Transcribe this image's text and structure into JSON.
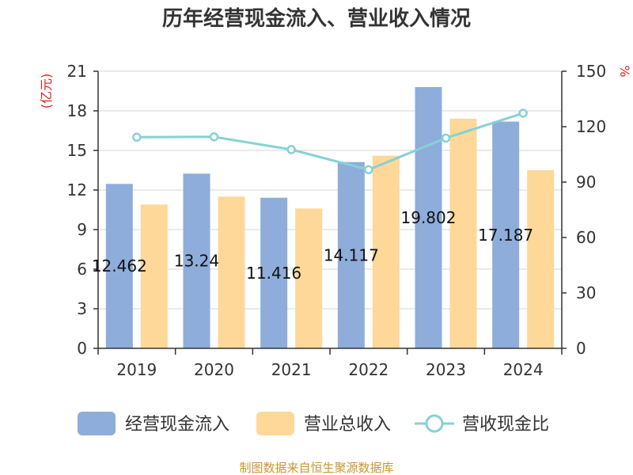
{
  "chart_data": {
    "type": "bar",
    "title": "历年经营现金流入、营业收入情况",
    "categories": [
      "2019",
      "2020",
      "2021",
      "2022",
      "2023",
      "2024"
    ],
    "series": [
      {
        "name": "经营现金流入",
        "type": "bar",
        "axis": "left",
        "color": "#8eadda",
        "values": [
          12.462,
          13.24,
          11.416,
          14.117,
          19.802,
          17.187
        ],
        "labels": [
          "12.462",
          "13.24",
          "11.416",
          "14.117",
          "19.802",
          "17.187"
        ]
      },
      {
        "name": "营业总收入",
        "type": "bar",
        "axis": "left",
        "color": "#fdd898",
        "values": [
          10.9,
          11.5,
          10.6,
          14.6,
          17.4,
          13.5
        ]
      },
      {
        "name": "营收现金比",
        "type": "line",
        "axis": "right",
        "color": "#86d1d6",
        "values": [
          114.3,
          114.5,
          107.6,
          96.7,
          113.8,
          127.3
        ]
      }
    ],
    "y_left": {
      "unit": "(亿元)",
      "min": 0,
      "max": 21,
      "ticks": [
        "0",
        "3",
        "6",
        "9",
        "12",
        "15",
        "18",
        "21"
      ]
    },
    "y_right": {
      "unit": "%",
      "min": 0,
      "max": 150,
      "ticks": [
        "0",
        "30",
        "60",
        "90",
        "120",
        "150"
      ]
    },
    "grid": true,
    "legend": "bottom"
  },
  "source": "制图数据来自恒生聚源数据库"
}
